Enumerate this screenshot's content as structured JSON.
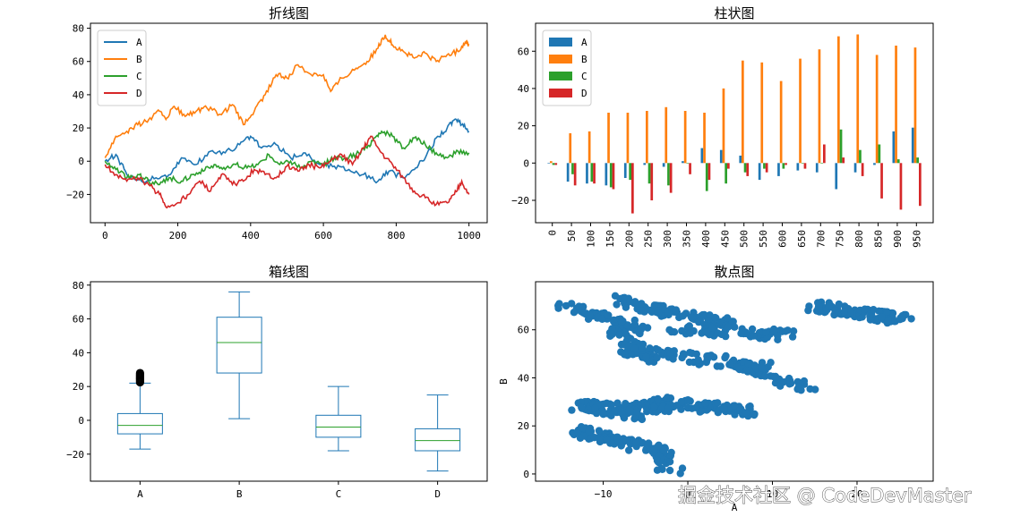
{
  "colors": {
    "A": "#1f77b4",
    "B": "#ff7f0e",
    "C": "#2ca02c",
    "D": "#d62728",
    "median": "#2ca02c"
  },
  "watermark": "掘金技术社区 @ CodeDevMaster",
  "chart_data": [
    {
      "type": "line",
      "title": "折线图",
      "xlim": [
        -40,
        1050
      ],
      "ylim": [
        -37,
        83
      ],
      "xticks": [
        0,
        200,
        400,
        600,
        800,
        1000
      ],
      "yticks": [
        -20,
        0,
        20,
        40,
        60,
        80
      ],
      "legend_position": "top-left",
      "series": [
        {
          "name": "A",
          "points": [
            [
              0,
              0
            ],
            [
              30,
              4
            ],
            [
              60,
              -8
            ],
            [
              100,
              -12
            ],
            [
              140,
              -10
            ],
            [
              180,
              -8
            ],
            [
              210,
              2
            ],
            [
              250,
              -2
            ],
            [
              290,
              6
            ],
            [
              330,
              5
            ],
            [
              370,
              10
            ],
            [
              400,
              15
            ],
            [
              430,
              8
            ],
            [
              470,
              10
            ],
            [
              510,
              2
            ],
            [
              550,
              5
            ],
            [
              590,
              -2
            ],
            [
              630,
              -3
            ],
            [
              670,
              -5
            ],
            [
              710,
              -8
            ],
            [
              750,
              -12
            ],
            [
              780,
              -6
            ],
            [
              820,
              -10
            ],
            [
              850,
              -5
            ],
            [
              880,
              2
            ],
            [
              910,
              14
            ],
            [
              940,
              20
            ],
            [
              960,
              25
            ],
            [
              980,
              22
            ],
            [
              1000,
              18
            ]
          ]
        },
        {
          "name": "B",
          "points": [
            [
              0,
              2
            ],
            [
              30,
              15
            ],
            [
              60,
              18
            ],
            [
              90,
              22
            ],
            [
              120,
              25
            ],
            [
              150,
              30
            ],
            [
              170,
              26
            ],
            [
              190,
              33
            ],
            [
              220,
              27
            ],
            [
              250,
              30
            ],
            [
              280,
              32
            ],
            [
              320,
              28
            ],
            [
              350,
              34
            ],
            [
              380,
              22
            ],
            [
              410,
              30
            ],
            [
              440,
              40
            ],
            [
              470,
              52
            ],
            [
              500,
              50
            ],
            [
              530,
              58
            ],
            [
              560,
              53
            ],
            [
              600,
              52
            ],
            [
              620,
              42
            ],
            [
              650,
              50
            ],
            [
              690,
              56
            ],
            [
              720,
              60
            ],
            [
              750,
              68
            ],
            [
              770,
              76
            ],
            [
              790,
              70
            ],
            [
              820,
              66
            ],
            [
              850,
              62
            ],
            [
              880,
              65
            ],
            [
              910,
              60
            ],
            [
              940,
              64
            ],
            [
              970,
              66
            ],
            [
              990,
              72
            ],
            [
              1000,
              70
            ]
          ]
        },
        {
          "name": "C",
          "points": [
            [
              0,
              0
            ],
            [
              30,
              -5
            ],
            [
              60,
              -10
            ],
            [
              90,
              -8
            ],
            [
              120,
              -12
            ],
            [
              150,
              -14
            ],
            [
              180,
              -10
            ],
            [
              210,
              -12
            ],
            [
              240,
              -8
            ],
            [
              270,
              -6
            ],
            [
              300,
              -2
            ],
            [
              330,
              -5
            ],
            [
              360,
              -2
            ],
            [
              390,
              -4
            ],
            [
              420,
              -2
            ],
            [
              450,
              4
            ],
            [
              480,
              -2
            ],
            [
              510,
              0
            ],
            [
              540,
              -4
            ],
            [
              570,
              0
            ],
            [
              600,
              -2
            ],
            [
              630,
              2
            ],
            [
              660,
              2
            ],
            [
              690,
              4
            ],
            [
              720,
              8
            ],
            [
              740,
              14
            ],
            [
              760,
              18
            ],
            [
              790,
              15
            ],
            [
              820,
              8
            ],
            [
              850,
              14
            ],
            [
              880,
              10
            ],
            [
              910,
              5
            ],
            [
              940,
              2
            ],
            [
              970,
              6
            ],
            [
              1000,
              5
            ]
          ]
        },
        {
          "name": "D",
          "points": [
            [
              0,
              -2
            ],
            [
              30,
              -8
            ],
            [
              60,
              -12
            ],
            [
              90,
              -10
            ],
            [
              120,
              -14
            ],
            [
              150,
              -20
            ],
            [
              170,
              -28
            ],
            [
              200,
              -25
            ],
            [
              230,
              -20
            ],
            [
              260,
              -12
            ],
            [
              290,
              -18
            ],
            [
              320,
              -8
            ],
            [
              350,
              -14
            ],
            [
              380,
              -12
            ],
            [
              410,
              -5
            ],
            [
              440,
              -8
            ],
            [
              470,
              -10
            ],
            [
              500,
              -3
            ],
            [
              530,
              -6
            ],
            [
              560,
              -2
            ],
            [
              590,
              -4
            ],
            [
              620,
              0
            ],
            [
              650,
              4
            ],
            [
              680,
              -2
            ],
            [
              710,
              8
            ],
            [
              730,
              15
            ],
            [
              760,
              5
            ],
            [
              790,
              -2
            ],
            [
              820,
              -10
            ],
            [
              850,
              -18
            ],
            [
              880,
              -22
            ],
            [
              910,
              -26
            ],
            [
              940,
              -25
            ],
            [
              960,
              -20
            ],
            [
              980,
              -12
            ],
            [
              1000,
              -20
            ]
          ]
        }
      ]
    },
    {
      "type": "bar",
      "title": "柱状图",
      "categories": [
        "0",
        "50",
        "100",
        "150",
        "200",
        "250",
        "300",
        "350",
        "400",
        "450",
        "500",
        "550",
        "600",
        "650",
        "700",
        "750",
        "800",
        "850",
        "900",
        "950"
      ],
      "ylim": [
        -32,
        75
      ],
      "yticks": [
        -20,
        0,
        20,
        40,
        60
      ],
      "legend_position": "top-left",
      "series": [
        {
          "name": "A",
          "values": [
            0,
            -10,
            -11,
            -12,
            -8,
            -1,
            -2,
            1,
            8,
            7,
            4,
            -9,
            -7,
            -4,
            -5,
            -14,
            -5,
            -1,
            17,
            19
          ]
        },
        {
          "name": "B",
          "values": [
            1,
            16,
            17,
            27,
            27,
            28,
            30,
            28,
            27,
            40,
            55,
            54,
            44,
            56,
            61,
            68,
            69,
            58,
            63,
            62
          ]
        },
        {
          "name": "C",
          "values": [
            -1,
            -6,
            -10,
            -13,
            -9,
            -11,
            -12,
            0,
            -15,
            -11,
            -5,
            -3,
            -3,
            0,
            0,
            18,
            7,
            10,
            2,
            3
          ]
        },
        {
          "name": "D",
          "values": [
            -1,
            -12,
            -11,
            -14,
            -27,
            -20,
            -16,
            -6,
            -9,
            -3,
            -7,
            -5,
            -1,
            -3,
            10,
            3,
            -7,
            -19,
            -25,
            -23
          ]
        }
      ]
    },
    {
      "type": "box",
      "title": "箱线图",
      "ylim": [
        -36,
        82
      ],
      "yticks": [
        -20,
        0,
        20,
        40,
        60,
        80
      ],
      "boxes": [
        {
          "name": "A",
          "min": -17,
          "q1": -8,
          "median": -3,
          "q3": 4,
          "max": 22,
          "outliers": [
            22.5,
            23,
            23.5,
            24,
            24.5,
            25,
            25.5,
            26,
            26.5,
            27,
            27.5,
            28
          ]
        },
        {
          "name": "B",
          "min": 1,
          "q1": 28,
          "median": 46,
          "q3": 61,
          "max": 76,
          "outliers": []
        },
        {
          "name": "C",
          "min": -18,
          "q1": -10,
          "median": -4,
          "q3": 3,
          "max": 20,
          "outliers": []
        },
        {
          "name": "D",
          "min": -30,
          "q1": -18,
          "median": -12,
          "q3": -5,
          "max": 15,
          "outliers": []
        }
      ]
    },
    {
      "type": "scatter",
      "title": "散点图",
      "xlabel": "A",
      "ylabel": "B",
      "xlim": [
        -18,
        29
      ],
      "ylim": [
        -3,
        80
      ],
      "xticks": [
        -10,
        0,
        10,
        20
      ],
      "xtick_labels": [
        "−10",
        "0",
        "10",
        "20"
      ],
      "yticks": [
        0,
        20,
        40,
        60
      ],
      "ytick_labels": [
        "0",
        "20",
        "40",
        "60"
      ],
      "clusters": [
        {
          "x0": -15,
          "y0": 70,
          "x1": -5,
          "y1": 60,
          "n": 70
        },
        {
          "x0": -8,
          "y0": 72,
          "x1": 5,
          "y1": 62,
          "n": 90
        },
        {
          "x0": -2,
          "y0": 60,
          "x1": 12,
          "y1": 58,
          "n": 60
        },
        {
          "x0": 15,
          "y0": 70,
          "x1": 26,
          "y1": 64,
          "n": 90
        },
        {
          "x0": -9,
          "y0": 60,
          "x1": -4,
          "y1": 48,
          "n": 50
        },
        {
          "x0": -8,
          "y0": 52,
          "x1": 10,
          "y1": 44,
          "n": 80
        },
        {
          "x0": 4,
          "y0": 48,
          "x1": 15,
          "y1": 34,
          "n": 50
        },
        {
          "x0": -13,
          "y0": 28,
          "x1": -2,
          "y1": 28,
          "n": 70
        },
        {
          "x0": -4,
          "y0": 30,
          "x1": 8,
          "y1": 26,
          "n": 90
        },
        {
          "x0": -12,
          "y0": 28,
          "x1": -5,
          "y1": 24,
          "n": 30
        },
        {
          "x0": -13,
          "y0": 18,
          "x1": -7,
          "y1": 12,
          "n": 60
        },
        {
          "x0": -7,
          "y0": 14,
          "x1": -2,
          "y1": 8,
          "n": 35
        },
        {
          "x0": -4,
          "y0": 4,
          "x1": -1,
          "y1": 2,
          "n": 12
        }
      ]
    }
  ]
}
